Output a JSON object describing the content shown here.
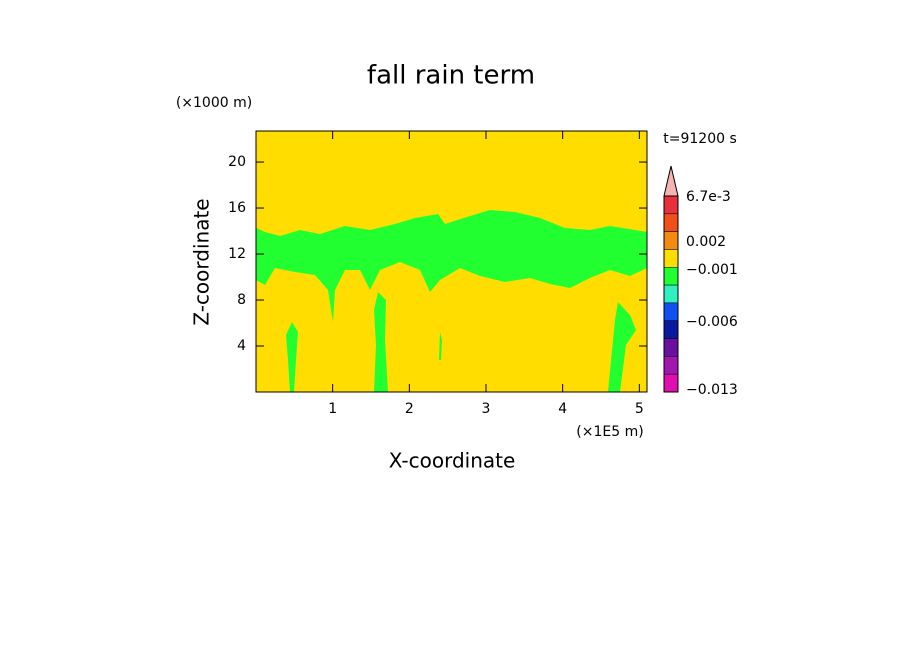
{
  "chart_data": {
    "type": "contour",
    "title": "fall rain term",
    "x_label": "X-coordinate",
    "y_label": "Z-coordinate",
    "x_unit": "(×1E5 m)",
    "y_unit": "(×1000 m)",
    "time_label": "t=91200 s",
    "xlim": [
      0,
      5.1
    ],
    "xticks": [
      1,
      2,
      3,
      4,
      5
    ],
    "ylim": [
      0,
      22.7
    ],
    "yticks": [
      4,
      8,
      12,
      16,
      20
    ],
    "background_color": "#ffdd00",
    "region_color": "#22ff30",
    "colorbar": {
      "labels": [
        "6.7e-3",
        "0.002",
        "−0.001",
        "−0.006",
        "−0.013"
      ],
      "top_color": "#f4b4b4",
      "colors": [
        "#e8303a",
        "#f05018",
        "#f48a10",
        "#ffdd00",
        "#22ff30",
        "#30f0c0",
        "#1050f0",
        "#0a1aa0",
        "#6a10a0",
        "#a018b0",
        "#e010b0"
      ]
    }
  }
}
